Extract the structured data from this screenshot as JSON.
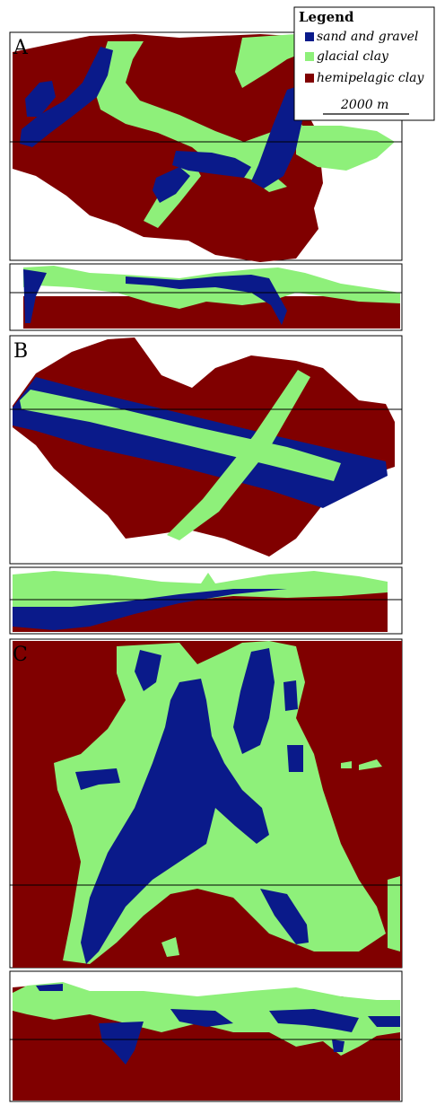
{
  "colors": {
    "sand_and_gravel": "#0a1a8a",
    "glacial_clay": "#8ef07a",
    "hemipelagic_clay": "#800000",
    "background": "#ffffff",
    "frame": "#000000"
  },
  "legend": {
    "title": "Legend",
    "items": [
      {
        "label": "sand and gravel",
        "color": "#0a1a8a"
      },
      {
        "label": "glacial clay",
        "color": "#8ef07a"
      },
      {
        "label": "hemipelagic clay",
        "color": "#800000"
      }
    ],
    "scale_label": "2000 m"
  },
  "panels": [
    {
      "label": "A",
      "views": [
        "map",
        "cross-section"
      ]
    },
    {
      "label": "B",
      "views": [
        "map",
        "cross-section"
      ]
    },
    {
      "label": "C",
      "views": [
        "map",
        "cross-section"
      ]
    }
  ]
}
